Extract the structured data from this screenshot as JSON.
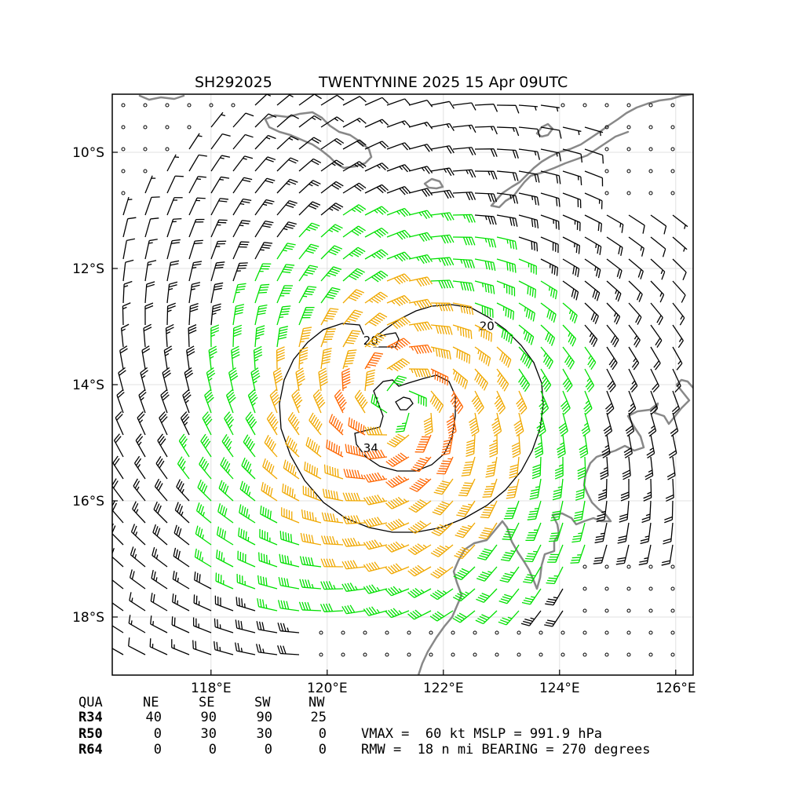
{
  "title": {
    "storm_id": "SH292025",
    "storm_name_time": "TWENTYNINE 2025 15 Apr 09UTC"
  },
  "map": {
    "lon_range": [
      116.3,
      126.3
    ],
    "lat_range": [
      -19.0,
      -9.0
    ],
    "x_ticks": [
      {
        "value": 118,
        "label": "118°E"
      },
      {
        "value": 120,
        "label": "120°E"
      },
      {
        "value": 122,
        "label": "122°E"
      },
      {
        "value": 124,
        "label": "124°E"
      },
      {
        "value": 126,
        "label": "126°E"
      }
    ],
    "y_ticks": [
      {
        "value": -10,
        "label": "10°S"
      },
      {
        "value": -12,
        "label": "12°S"
      },
      {
        "value": -14,
        "label": "14°S"
      },
      {
        "value": -16,
        "label": "16°S"
      },
      {
        "value": -18,
        "label": "18°S"
      }
    ],
    "grid": true,
    "storm_center": {
      "lon": 121.2,
      "lat": -14.35
    },
    "contour_labels": [
      {
        "text": "20",
        "lon": 120.75,
        "lat": -13.3
      },
      {
        "text": "20",
        "lon": 122.75,
        "lat": -13.05
      },
      {
        "text": "34",
        "lon": 120.75,
        "lat": -15.15
      }
    ],
    "colors": {
      "coast": "#888888",
      "barb_weak": "#000000",
      "barb_34kt": "#00e000",
      "barb_50kt": "#f0a800",
      "barb_64kt": "#ff6600",
      "contour": "#000000"
    }
  },
  "quadrant_table": {
    "headers": [
      "QUA",
      "NE",
      "SE",
      "SW",
      "NW"
    ],
    "rows": [
      {
        "label": "R34",
        "values": [
          "40",
          "90",
          "90",
          "25"
        ]
      },
      {
        "label": "R50",
        "values": [
          "0",
          "30",
          "30",
          "0"
        ]
      },
      {
        "label": "R64",
        "values": [
          "0",
          "0",
          "0",
          "0"
        ]
      }
    ]
  },
  "stats": {
    "line1": "VMAX =  60 kt MSLP = 991.9 hPa",
    "line2": "RMW =  18 n mi BEARING = 270 degrees"
  }
}
